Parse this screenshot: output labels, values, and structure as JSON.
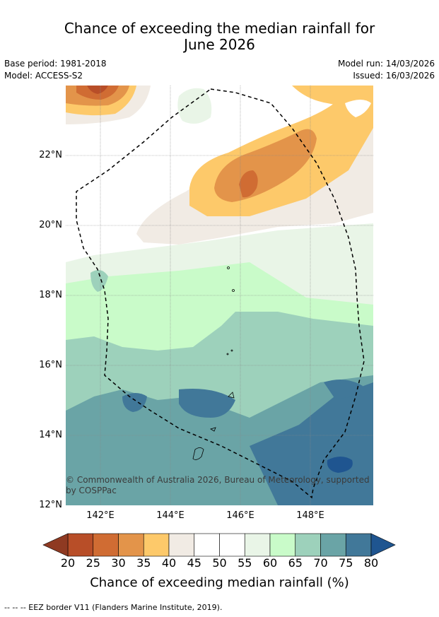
{
  "title_line1": "Chance of exceeding the median rainfall for",
  "title_line2": "June 2026",
  "base_period": "Base period: 1981-2018",
  "model": "Model: ACCESS-S2",
  "model_run": "Model run: 14/03/2026",
  "issued": "Issued: 16/03/2026",
  "lat_labels": [
    "22°N",
    "20°N",
    "18°N",
    "16°N",
    "14°N",
    "12°N"
  ],
  "lon_labels": [
    "142°E",
    "144°E",
    "146°E",
    "148°E"
  ],
  "copyright": "© Commonwealth of Australia 2026, Bureau of Meteorology, supported",
  "copyright2": "by COSPPac",
  "colorbar": {
    "label": "Chance of exceeding median rainfall (%)",
    "ticks": [
      "20",
      "25",
      "30",
      "35",
      "40",
      "45",
      "50",
      "55",
      "60",
      "65",
      "70",
      "75",
      "80"
    ],
    "colors": [
      "#8f3a22",
      "#b84e28",
      "#d06c33",
      "#e3944a",
      "#fdc96a",
      "#f1ebe4",
      "#ffffff",
      "#ffffff",
      "#e9f5e7",
      "#c9fbc9",
      "#9dd1bb",
      "#6aa4a6",
      "#417899",
      "#1f5590"
    ]
  },
  "footnote": "--  --  -- EEZ border V11 (Flanders Marine Institute, 2019)."
}
